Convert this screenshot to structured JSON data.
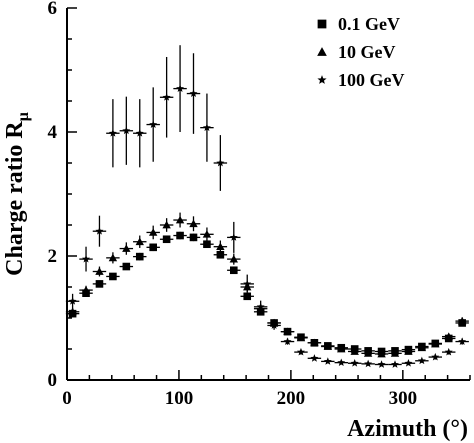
{
  "chart_data": {
    "type": "scatter",
    "xlabel": "Azimuth (°)",
    "ylabel": "Charge ratio R",
    "ylabel_subscript": "μ",
    "xlim": [
      0,
      360
    ],
    "ylim": [
      0,
      6
    ],
    "x_ticks": [
      0,
      100,
      200,
      300
    ],
    "y_ticks": [
      0,
      2,
      4,
      6
    ],
    "legend_position": "top-right",
    "grid": false,
    "series": [
      {
        "name": "0.1 GeV",
        "marker": "square",
        "points": [
          {
            "x": 5,
            "y": 1.07,
            "err": 0.04
          },
          {
            "x": 17,
            "y": 1.4,
            "err": 0.04
          },
          {
            "x": 29,
            "y": 1.55,
            "err": 0.05
          },
          {
            "x": 41,
            "y": 1.67,
            "err": 0.05
          },
          {
            "x": 53,
            "y": 1.83,
            "err": 0.05
          },
          {
            "x": 65,
            "y": 1.99,
            "err": 0.06
          },
          {
            "x": 77,
            "y": 2.14,
            "err": 0.06
          },
          {
            "x": 89,
            "y": 2.27,
            "err": 0.06
          },
          {
            "x": 101,
            "y": 2.33,
            "err": 0.06
          },
          {
            "x": 113,
            "y": 2.3,
            "err": 0.06
          },
          {
            "x": 125,
            "y": 2.19,
            "err": 0.06
          },
          {
            "x": 137,
            "y": 2.02,
            "err": 0.06
          },
          {
            "x": 149,
            "y": 1.77,
            "err": 0.05
          },
          {
            "x": 161,
            "y": 1.35,
            "err": 0.05
          },
          {
            "x": 173,
            "y": 1.1,
            "err": 0.04
          },
          {
            "x": 185,
            "y": 0.92,
            "err": 0.04
          },
          {
            "x": 197,
            "y": 0.78,
            "err": 0.04
          },
          {
            "x": 209,
            "y": 0.69,
            "err": 0.03
          },
          {
            "x": 221,
            "y": 0.6,
            "err": 0.03
          },
          {
            "x": 233,
            "y": 0.55,
            "err": 0.03
          },
          {
            "x": 245,
            "y": 0.52,
            "err": 0.03
          },
          {
            "x": 257,
            "y": 0.5,
            "err": 0.03
          },
          {
            "x": 269,
            "y": 0.47,
            "err": 0.03
          },
          {
            "x": 281,
            "y": 0.46,
            "err": 0.03
          },
          {
            "x": 293,
            "y": 0.47,
            "err": 0.03
          },
          {
            "x": 305,
            "y": 0.49,
            "err": 0.03
          },
          {
            "x": 317,
            "y": 0.54,
            "err": 0.03
          },
          {
            "x": 329,
            "y": 0.59,
            "err": 0.03
          },
          {
            "x": 341,
            "y": 0.67,
            "err": 0.03
          },
          {
            "x": 353,
            "y": 0.92,
            "err": 0.04
          }
        ]
      },
      {
        "name": "10 GeV",
        "marker": "triangle",
        "points": [
          {
            "x": 5,
            "y": 1.1,
            "err": 0.06
          },
          {
            "x": 17,
            "y": 1.45,
            "err": 0.07
          },
          {
            "x": 29,
            "y": 1.75,
            "err": 0.08
          },
          {
            "x": 41,
            "y": 1.97,
            "err": 0.09
          },
          {
            "x": 53,
            "y": 2.12,
            "err": 0.1
          },
          {
            "x": 65,
            "y": 2.23,
            "err": 0.1
          },
          {
            "x": 77,
            "y": 2.38,
            "err": 0.11
          },
          {
            "x": 89,
            "y": 2.5,
            "err": 0.11
          },
          {
            "x": 101,
            "y": 2.58,
            "err": 0.12
          },
          {
            "x": 113,
            "y": 2.52,
            "err": 0.12
          },
          {
            "x": 125,
            "y": 2.35,
            "err": 0.11
          },
          {
            "x": 137,
            "y": 2.15,
            "err": 0.1
          },
          {
            "x": 149,
            "y": 1.95,
            "err": 0.09
          },
          {
            "x": 161,
            "y": 1.5,
            "err": 0.08
          },
          {
            "x": 173,
            "y": 1.15,
            "err": 0.07
          },
          {
            "x": 185,
            "y": 0.92,
            "err": 0.06
          },
          {
            "x": 197,
            "y": 0.78,
            "err": 0.05
          },
          {
            "x": 209,
            "y": 0.68,
            "err": 0.05
          },
          {
            "x": 221,
            "y": 0.6,
            "err": 0.04
          },
          {
            "x": 233,
            "y": 0.54,
            "err": 0.04
          },
          {
            "x": 245,
            "y": 0.5,
            "err": 0.04
          },
          {
            "x": 257,
            "y": 0.46,
            "err": 0.04
          },
          {
            "x": 269,
            "y": 0.43,
            "err": 0.04
          },
          {
            "x": 281,
            "y": 0.42,
            "err": 0.04
          },
          {
            "x": 293,
            "y": 0.43,
            "err": 0.04
          },
          {
            "x": 305,
            "y": 0.46,
            "err": 0.04
          },
          {
            "x": 317,
            "y": 0.52,
            "err": 0.04
          },
          {
            "x": 329,
            "y": 0.58,
            "err": 0.04
          },
          {
            "x": 341,
            "y": 0.7,
            "err": 0.05
          },
          {
            "x": 353,
            "y": 0.95,
            "err": 0.06
          }
        ]
      },
      {
        "name": "100 GeV",
        "marker": "star",
        "points": [
          {
            "x": 5,
            "y": 1.27,
            "err": 0.12
          },
          {
            "x": 17,
            "y": 1.95,
            "err": 0.2
          },
          {
            "x": 29,
            "y": 2.4,
            "err": 0.25
          },
          {
            "x": 41,
            "y": 3.98,
            "err": 0.55
          },
          {
            "x": 53,
            "y": 4.02,
            "err": 0.55
          },
          {
            "x": 65,
            "y": 3.98,
            "err": 0.55
          },
          {
            "x": 77,
            "y": 4.12,
            "err": 0.6
          },
          {
            "x": 89,
            "y": 4.56,
            "err": 0.65
          },
          {
            "x": 101,
            "y": 4.7,
            "err": 0.7
          },
          {
            "x": 113,
            "y": 4.62,
            "err": 0.65
          },
          {
            "x": 125,
            "y": 4.07,
            "err": 0.55
          },
          {
            "x": 137,
            "y": 3.5,
            "err": 0.45
          },
          {
            "x": 149,
            "y": 2.3,
            "err": 0.25
          },
          {
            "x": 161,
            "y": 1.55,
            "err": 0.15
          },
          {
            "x": 173,
            "y": 1.18,
            "err": 0.1
          },
          {
            "x": 185,
            "y": 0.88,
            "err": 0.07
          },
          {
            "x": 197,
            "y": 0.62,
            "err": 0.05
          },
          {
            "x": 209,
            "y": 0.45,
            "err": 0.04
          },
          {
            "x": 221,
            "y": 0.35,
            "err": 0.03
          },
          {
            "x": 233,
            "y": 0.3,
            "err": 0.03
          },
          {
            "x": 245,
            "y": 0.28,
            "err": 0.03
          },
          {
            "x": 257,
            "y": 0.27,
            "err": 0.03
          },
          {
            "x": 269,
            "y": 0.26,
            "err": 0.03
          },
          {
            "x": 281,
            "y": 0.25,
            "err": 0.03
          },
          {
            "x": 293,
            "y": 0.25,
            "err": 0.03
          },
          {
            "x": 305,
            "y": 0.27,
            "err": 0.03
          },
          {
            "x": 317,
            "y": 0.31,
            "err": 0.03
          },
          {
            "x": 329,
            "y": 0.37,
            "err": 0.04
          },
          {
            "x": 341,
            "y": 0.45,
            "err": 0.04
          },
          {
            "x": 353,
            "y": 0.62,
            "err": 0.05
          }
        ]
      }
    ]
  }
}
